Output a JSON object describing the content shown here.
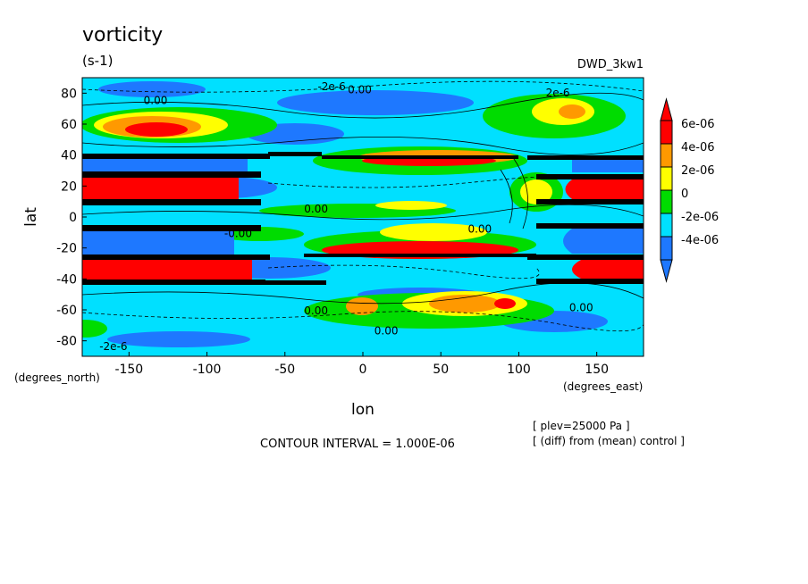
{
  "chart_data": {
    "type": "heatmap",
    "title": "vorticity",
    "units": "(s-1)",
    "dataset": "DWD_3kw1",
    "xlabel": "lon",
    "ylabel": "lat",
    "x_unit_note": "(degrees_east)",
    "y_unit_note": "(degrees_north)",
    "xlim": [
      -180,
      180
    ],
    "ylim": [
      -90,
      90
    ],
    "x_ticks": [
      -150,
      -100,
      -50,
      0,
      50,
      100,
      150
    ],
    "x_tick_labels": [
      "-150",
      "-100",
      "-50",
      "0",
      "50",
      "100",
      "150"
    ],
    "y_ticks": [
      80,
      60,
      40,
      20,
      0,
      -20,
      -40,
      -60,
      -80
    ],
    "y_tick_labels": [
      "80",
      "60",
      "40",
      "20",
      "0",
      "-20",
      "-40",
      "-60",
      "-80"
    ],
    "contour_interval": "CONTOUR INTERVAL = 1.000E-06",
    "notes": [
      "[ plev=25000 Pa ]",
      "[ (diff) from (mean) control ]"
    ],
    "colorbar": {
      "colors": [
        "#1e78ff",
        "#00e0ff",
        "#00dc00",
        "#ffff00",
        "#ff9900",
        "#ff0000"
      ],
      "tick_labels": [
        "6e-06",
        "4e-06",
        "2e-06",
        "0",
        "-2e-06",
        "-4e-06"
      ],
      "extend": "both"
    },
    "contour_labels": [
      {
        "text": "-2e-6",
        "lon": -20,
        "lat": 82
      },
      {
        "text": "0.00",
        "lon": -2,
        "lat": 80
      },
      {
        "text": "0.00",
        "lon": -133,
        "lat": 73
      },
      {
        "text": "2e-6",
        "lon": 125,
        "lat": 78
      },
      {
        "text": "0.00",
        "lon": -30,
        "lat": 3
      },
      {
        "text": "0.00",
        "lon": 75,
        "lat": -10
      },
      {
        "text": "-0.00",
        "lon": -80,
        "lat": -13
      },
      {
        "text": "0.00",
        "lon": -30,
        "lat": -63
      },
      {
        "text": "0.00",
        "lon": 15,
        "lat": -76
      },
      {
        "text": "0.00",
        "lon": 140,
        "lat": -61
      },
      {
        "text": "-2e-6",
        "lon": -160,
        "lat": -86
      }
    ]
  }
}
